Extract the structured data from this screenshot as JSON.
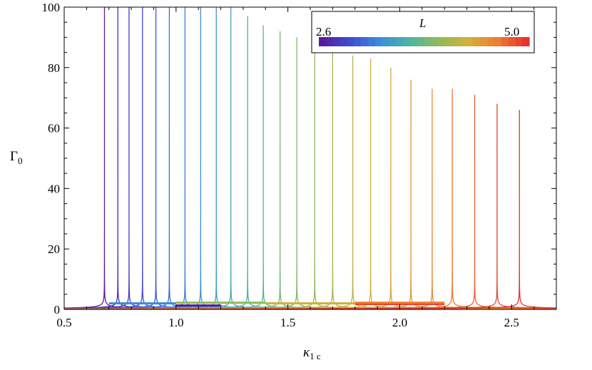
{
  "chart_data": {
    "type": "line",
    "title": "",
    "xlabel": "κ",
    "xlabel_sub": "1 c",
    "ylabel": "Γ",
    "ylabel_sub": "0",
    "xlim": [
      0.5,
      2.7
    ],
    "ylim": [
      0,
      100
    ],
    "x_ticks": [
      0.5,
      1.0,
      1.5,
      2.0,
      2.5
    ],
    "x_tick_labels": [
      "0.5",
      "1.0",
      "1.5",
      "2.0",
      "2.5"
    ],
    "y_ticks": [
      0,
      20,
      40,
      60,
      80,
      100
    ],
    "y_tick_labels": [
      "0",
      "20",
      "40",
      "60",
      "80",
      "100"
    ],
    "grid": false,
    "legend": {
      "placement": "top-right",
      "title": "L",
      "min_label": "2.6",
      "max_label": "5.0",
      "colormap": [
        "#5a1c9c",
        "#3b4fd8",
        "#3d8ed8",
        "#4db3a6",
        "#8dbb5a",
        "#d3b13c",
        "#ee7f33",
        "#e8322b"
      ]
    },
    "colormap_range": [
      2.6,
      5.0
    ],
    "series_note_params": "each curve: Γ0 = 2·c / sqrt(|x − x_peak| + w), w=(c/peak_value)²",
    "series": [
      {
        "L": 2.6,
        "x_peak": 0.68,
        "peak_value": 100
      },
      {
        "L": 2.7,
        "x_peak": 0.74,
        "peak_value": 100
      },
      {
        "L": 2.8,
        "x_peak": 0.79,
        "peak_value": 100
      },
      {
        "L": 2.9,
        "x_peak": 0.85,
        "peak_value": 100
      },
      {
        "L": 3.0,
        "x_peak": 0.91,
        "peak_value": 100
      },
      {
        "L": 3.1,
        "x_peak": 0.97,
        "peak_value": 100
      },
      {
        "L": 3.2,
        "x_peak": 1.04,
        "peak_value": 100
      },
      {
        "L": 3.3,
        "x_peak": 1.11,
        "peak_value": 100
      },
      {
        "L": 3.4,
        "x_peak": 1.18,
        "peak_value": 100
      },
      {
        "L": 3.5,
        "x_peak": 1.245,
        "peak_value": 100
      },
      {
        "L": 3.6,
        "x_peak": 1.32,
        "peak_value": 97
      },
      {
        "L": 3.7,
        "x_peak": 1.39,
        "peak_value": 94
      },
      {
        "L": 3.8,
        "x_peak": 1.465,
        "peak_value": 92
      },
      {
        "L": 3.9,
        "x_peak": 1.54,
        "peak_value": 90
      },
      {
        "L": 4.0,
        "x_peak": 1.62,
        "peak_value": 87
      },
      {
        "L": 4.1,
        "x_peak": 1.7,
        "peak_value": 86
      },
      {
        "L": 4.2,
        "x_peak": 1.79,
        "peak_value": 84
      },
      {
        "L": 4.3,
        "x_peak": 1.87,
        "peak_value": 83
      },
      {
        "L": 4.4,
        "x_peak": 1.96,
        "peak_value": 80
      },
      {
        "L": 4.5,
        "x_peak": 2.05,
        "peak_value": 76
      },
      {
        "L": 4.6,
        "x_peak": 2.145,
        "peak_value": 73
      },
      {
        "L": 4.7,
        "x_peak": 2.235,
        "peak_value": 73
      },
      {
        "L": 4.8,
        "x_peak": 2.335,
        "peak_value": 71
      },
      {
        "L": 4.9,
        "x_peak": 2.435,
        "peak_value": 68
      },
      {
        "L": 5.0,
        "x_peak": 2.535,
        "peak_value": 66
      }
    ],
    "baseline_segments": [
      {
        "x": [
          0.7,
          1.0
        ],
        "y": 2.0,
        "color": "#3d8ed8"
      },
      {
        "x": [
          1.0,
          1.2
        ],
        "y": 1.3,
        "color": "#5a1c9c"
      },
      {
        "x": [
          1.0,
          1.4
        ],
        "y": 2.2,
        "color": "#8dbb5a"
      },
      {
        "x": [
          1.4,
          1.8
        ],
        "y": 2.0,
        "color": "#d3b13c"
      },
      {
        "x": [
          1.8,
          2.2
        ],
        "y": 1.8,
        "color": "#e8322b"
      },
      {
        "x": [
          1.8,
          2.2
        ],
        "y": 2.2,
        "color": "#ee7f33"
      }
    ]
  }
}
